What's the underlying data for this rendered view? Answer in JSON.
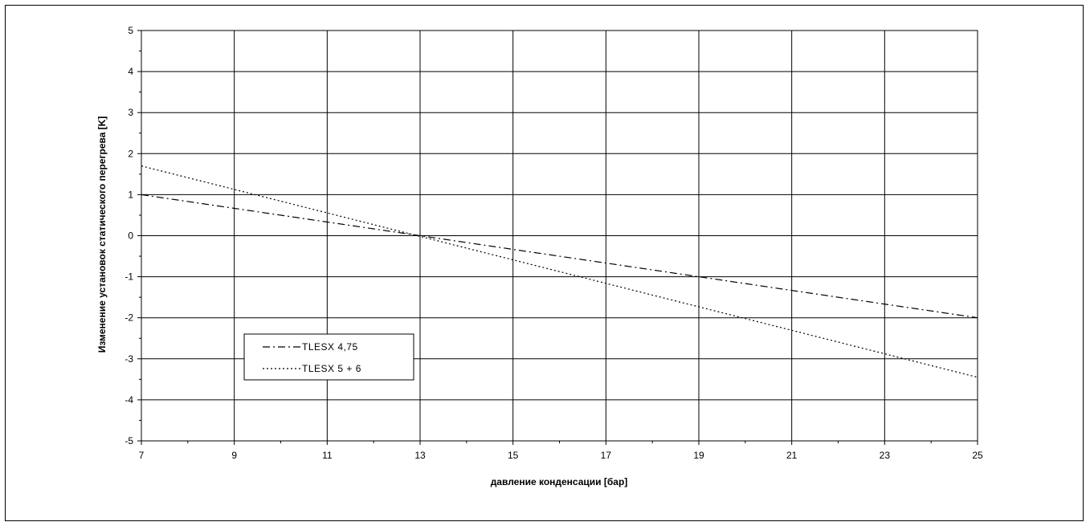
{
  "chart_data": {
    "type": "line",
    "title": "",
    "xlabel": "давление конденсации [бар]",
    "ylabel": "Изменение установок статического перегрева [K]",
    "xlim": [
      7,
      25
    ],
    "ylim": [
      -5,
      5
    ],
    "x_ticks": [
      7,
      9,
      11,
      13,
      15,
      17,
      19,
      21,
      23,
      25
    ],
    "y_ticks": [
      5,
      4,
      3,
      2,
      1,
      0,
      -1,
      -2,
      -3,
      -4,
      -5
    ],
    "grid": true,
    "legend_position": "lower-left",
    "series": [
      {
        "name": "TLESX 4,75",
        "style": "dash-dot",
        "color": "#000000",
        "x": [
          7,
          25
        ],
        "y": [
          1.0,
          -2.0
        ]
      },
      {
        "name": "TLESX 5 + 6",
        "style": "dotted",
        "color": "#000000",
        "x": [
          7,
          25
        ],
        "y": [
          1.7,
          -3.45
        ]
      }
    ]
  }
}
